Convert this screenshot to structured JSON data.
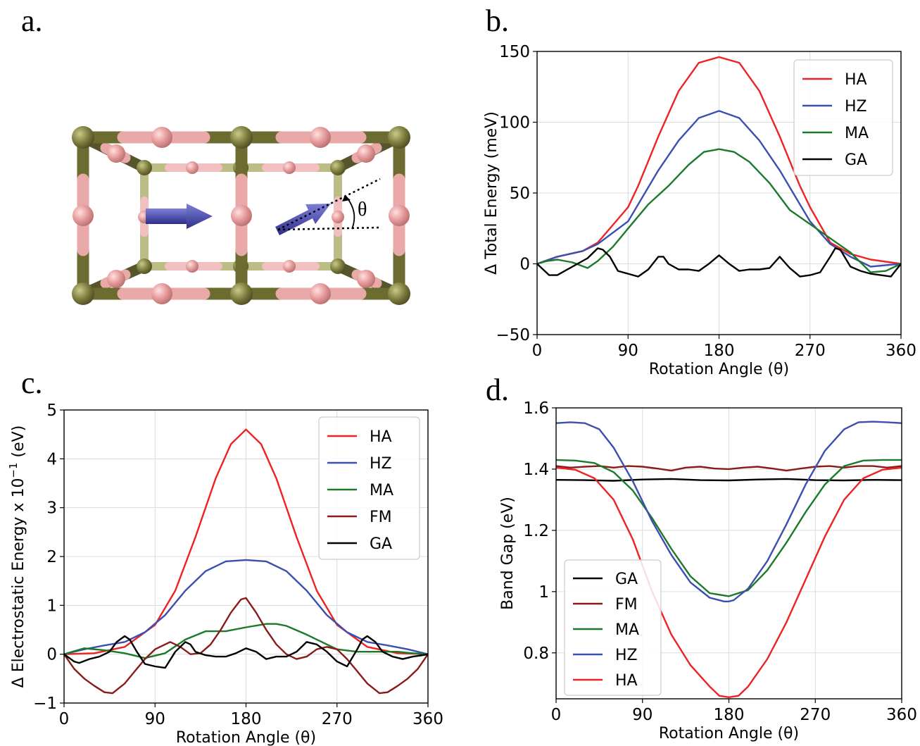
{
  "panels": {
    "a": "a.",
    "b": "b.",
    "c": "c.",
    "d": "d."
  },
  "figure_a": {
    "angle_label": "θ"
  },
  "chart_data": [
    {
      "id": "b",
      "type": "line",
      "xlabel": "Rotation Angle (θ)",
      "ylabel": "Δ Total Energy (meV)",
      "xlim": [
        0,
        360
      ],
      "ylim": [
        -50,
        150
      ],
      "xticks": [
        0,
        90,
        180,
        270,
        360
      ],
      "yticks": [
        -50,
        0,
        50,
        100,
        150
      ],
      "grid": true,
      "legend": "top-right",
      "series": [
        {
          "name": "HA",
          "color": "#ee2222",
          "x": [
            0,
            20,
            45,
            60,
            90,
            100,
            120,
            140,
            160,
            180,
            200,
            220,
            240,
            260,
            270,
            290,
            310,
            330,
            360
          ],
          "y": [
            0,
            5,
            9,
            15,
            40,
            55,
            90,
            122,
            142,
            146,
            142,
            122,
            90,
            55,
            40,
            15,
            7,
            3,
            0
          ]
        },
        {
          "name": "HZ",
          "color": "#3b4fb0",
          "x": [
            0,
            20,
            45,
            60,
            90,
            100,
            120,
            140,
            160,
            180,
            200,
            220,
            240,
            260,
            270,
            290,
            310,
            330,
            360
          ],
          "y": [
            0,
            5,
            9,
            14,
            30,
            42,
            66,
            87,
            103,
            108,
            103,
            87,
            66,
            42,
            30,
            14,
            5,
            -2,
            0
          ]
        },
        {
          "name": "MA",
          "color": "#1a7a2a",
          "x": [
            0,
            10,
            20,
            35,
            50,
            60,
            75,
            90,
            110,
            130,
            150,
            165,
            180,
            195,
            210,
            230,
            250,
            270,
            290,
            310,
            330,
            345,
            360
          ],
          "y": [
            0,
            2,
            3,
            1,
            -3,
            2,
            12,
            25,
            42,
            55,
            70,
            79,
            81,
            79,
            72,
            57,
            38,
            28,
            18,
            8,
            -6,
            -5,
            0
          ]
        },
        {
          "name": "GA",
          "color": "#000000",
          "x": [
            0,
            12,
            20,
            30,
            40,
            50,
            60,
            65,
            72,
            80,
            90,
            100,
            110,
            120,
            125,
            130,
            140,
            150,
            160,
            170,
            180,
            190,
            200,
            210,
            220,
            230,
            240,
            250,
            260,
            270,
            280,
            290,
            295,
            300,
            305,
            310,
            320,
            330,
            340,
            350,
            360
          ],
          "y": [
            0,
            -8,
            -8,
            -4,
            0,
            4,
            11,
            10,
            5,
            -5,
            -7,
            -9,
            -4,
            5,
            5,
            0,
            -4,
            -4,
            -5,
            0,
            6,
            0,
            -5,
            -4,
            -4,
            -3,
            5,
            -3,
            -9,
            -8,
            -6,
            5,
            11,
            10,
            4,
            -2,
            -5,
            -7,
            -8,
            -9,
            0
          ]
        }
      ]
    },
    {
      "id": "c",
      "type": "line",
      "xlabel": "Rotation Angle (θ)",
      "ylabel": "Δ Electrostatic Energy x 10⁻¹ (eV)",
      "ylabel_parts": {
        "before": "Δ Electrostatic Energy x 10",
        "sup": "−1",
        "after": " (eV)"
      },
      "xlim": [
        0,
        360
      ],
      "ylim": [
        -1,
        5
      ],
      "xticks": [
        0,
        90,
        180,
        270,
        360
      ],
      "yticks": [
        -1,
        0,
        1,
        2,
        3,
        4,
        5
      ],
      "grid": true,
      "legend": "top-right",
      "series": [
        {
          "name": "HA",
          "color": "#ee2222",
          "x": [
            0,
            30,
            60,
            90,
            110,
            130,
            150,
            165,
            180,
            195,
            210,
            230,
            250,
            270,
            300,
            330,
            360
          ],
          "y": [
            0,
            0.02,
            0.15,
            0.6,
            1.3,
            2.4,
            3.6,
            4.3,
            4.6,
            4.3,
            3.6,
            2.4,
            1.3,
            0.6,
            0.15,
            0.02,
            0
          ]
        },
        {
          "name": "HZ",
          "color": "#3b4fb0",
          "x": [
            0,
            20,
            40,
            60,
            80,
            100,
            120,
            140,
            160,
            180,
            200,
            220,
            240,
            260,
            280,
            300,
            320,
            340,
            360
          ],
          "y": [
            0,
            0.1,
            0.18,
            0.25,
            0.45,
            0.8,
            1.3,
            1.7,
            1.9,
            1.93,
            1.9,
            1.7,
            1.3,
            0.8,
            0.45,
            0.25,
            0.18,
            0.1,
            0
          ]
        },
        {
          "name": "MA",
          "color": "#1a7a2a",
          "x": [
            0,
            20,
            40,
            60,
            80,
            100,
            120,
            140,
            160,
            180,
            200,
            210,
            220,
            240,
            260,
            270,
            290,
            310,
            330,
            345,
            360
          ],
          "y": [
            0,
            0.12,
            0.08,
            0.02,
            -0.08,
            0.02,
            0.3,
            0.47,
            0.47,
            0.55,
            0.62,
            0.62,
            0.58,
            0.4,
            0.2,
            0.1,
            0.05,
            0.05,
            0.05,
            0.02,
            0
          ]
        },
        {
          "name": "FM",
          "color": "#8b1a1a",
          "x": [
            0,
            10,
            20,
            30,
            40,
            48,
            60,
            70,
            80,
            90,
            105,
            115,
            125,
            135,
            145,
            155,
            165,
            175,
            180,
            190,
            200,
            210,
            220,
            230,
            240,
            250,
            260,
            270,
            280,
            290,
            300,
            312,
            320,
            330,
            340,
            350,
            360
          ],
          "y": [
            0,
            -0.3,
            -0.5,
            -0.65,
            -0.78,
            -0.8,
            -0.6,
            -0.35,
            -0.1,
            0.1,
            0.25,
            0.15,
            0.0,
            0.02,
            0.2,
            0.5,
            0.85,
            1.12,
            1.15,
            0.85,
            0.5,
            0.2,
            0.0,
            -0.1,
            -0.05,
            0.1,
            0.15,
            0.1,
            -0.1,
            -0.35,
            -0.6,
            -0.8,
            -0.78,
            -0.65,
            -0.5,
            -0.3,
            0
          ]
        },
        {
          "name": "GA",
          "color": "#000000",
          "x": [
            0,
            10,
            15,
            25,
            35,
            45,
            52,
            60,
            65,
            72,
            80,
            90,
            100,
            110,
            120,
            125,
            130,
            140,
            150,
            160,
            170,
            180,
            190,
            200,
            210,
            220,
            230,
            240,
            250,
            260,
            270,
            280,
            290,
            295,
            300,
            308,
            315,
            325,
            335,
            345,
            355,
            360
          ],
          "y": [
            0,
            -0.15,
            -0.18,
            -0.1,
            -0.05,
            0.05,
            0.25,
            0.37,
            0.3,
            0.05,
            -0.2,
            -0.25,
            -0.28,
            0.05,
            0.25,
            0.2,
            0.05,
            -0.02,
            -0.05,
            -0.05,
            0.02,
            0.12,
            0.05,
            -0.1,
            -0.05,
            -0.05,
            0.05,
            0.25,
            0.2,
            0.05,
            -0.15,
            -0.25,
            0.1,
            0.3,
            0.37,
            0.25,
            0.05,
            -0.05,
            -0.1,
            -0.05,
            -0.02,
            0
          ]
        }
      ]
    },
    {
      "id": "d",
      "type": "line",
      "xlabel": "Rotation Angle (θ)",
      "ylabel": "Band Gap (eV)",
      "xlim": [
        0,
        360
      ],
      "ylim": [
        0.65,
        1.6
      ],
      "xticks": [
        0,
        90,
        180,
        270,
        360
      ],
      "yticks": [
        0.8,
        1.0,
        1.2,
        1.4,
        1.6
      ],
      "grid": true,
      "legend": "lower-left",
      "series": [
        {
          "name": "GA",
          "color": "#000000",
          "x": [
            0,
            30,
            60,
            90,
            120,
            150,
            180,
            210,
            240,
            270,
            300,
            330,
            360
          ],
          "y": [
            1.365,
            1.364,
            1.362,
            1.366,
            1.368,
            1.364,
            1.363,
            1.366,
            1.368,
            1.364,
            1.363,
            1.365,
            1.364
          ]
        },
        {
          "name": "FM",
          "color": "#8b1a1a",
          "x": [
            0,
            15,
            30,
            45,
            60,
            75,
            90,
            105,
            120,
            135,
            150,
            165,
            180,
            195,
            210,
            225,
            240,
            255,
            270,
            285,
            300,
            315,
            330,
            345,
            360
          ],
          "y": [
            1.41,
            1.405,
            1.408,
            1.41,
            1.405,
            1.41,
            1.408,
            1.402,
            1.395,
            1.405,
            1.408,
            1.402,
            1.4,
            1.405,
            1.408,
            1.402,
            1.395,
            1.402,
            1.408,
            1.41,
            1.405,
            1.41,
            1.41,
            1.405,
            1.41
          ]
        },
        {
          "name": "MA",
          "color": "#1a7a2a",
          "x": [
            0,
            20,
            40,
            60,
            80,
            100,
            120,
            140,
            160,
            180,
            200,
            220,
            240,
            260,
            280,
            300,
            320,
            340,
            360
          ],
          "y": [
            1.43,
            1.428,
            1.42,
            1.39,
            1.33,
            1.24,
            1.14,
            1.05,
            0.995,
            0.985,
            1.005,
            1.07,
            1.16,
            1.26,
            1.35,
            1.41,
            1.428,
            1.43,
            1.43
          ]
        },
        {
          "name": "HZ",
          "color": "#3b4fb0",
          "x": [
            0,
            15,
            30,
            45,
            60,
            80,
            100,
            120,
            140,
            160,
            175,
            180,
            185,
            200,
            220,
            240,
            260,
            280,
            300,
            315,
            330,
            345,
            360
          ],
          "y": [
            1.55,
            1.553,
            1.55,
            1.53,
            1.47,
            1.36,
            1.23,
            1.12,
            1.03,
            0.98,
            0.968,
            0.968,
            0.972,
            1.01,
            1.1,
            1.22,
            1.35,
            1.46,
            1.53,
            1.553,
            1.555,
            1.553,
            1.55
          ]
        },
        {
          "name": "HA",
          "color": "#ee2222",
          "x": [
            0,
            20,
            40,
            60,
            80,
            100,
            120,
            140,
            160,
            170,
            180,
            190,
            200,
            220,
            240,
            260,
            280,
            300,
            320,
            340,
            360
          ],
          "y": [
            1.405,
            1.398,
            1.37,
            1.3,
            1.17,
            1.0,
            0.86,
            0.76,
            0.69,
            0.66,
            0.655,
            0.66,
            0.69,
            0.78,
            0.9,
            1.04,
            1.18,
            1.3,
            1.37,
            1.398,
            1.405
          ]
        }
      ]
    }
  ]
}
